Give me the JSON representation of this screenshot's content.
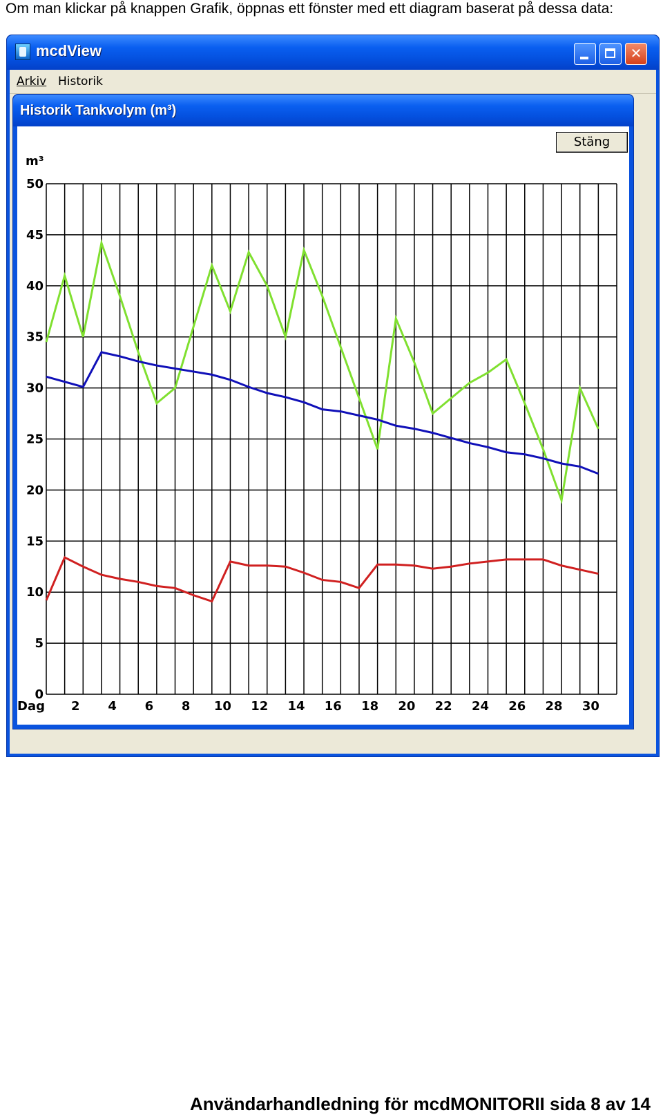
{
  "intro_text": "Om man klickar på knappen Grafik, öppnas ett fönster med ett diagram baserat på dessa data:",
  "window": {
    "title": "mcdView",
    "icon": "app-icon",
    "caption_buttons": [
      "minimize-icon",
      "maximize-icon",
      "close-icon"
    ],
    "close_glyph": "✕"
  },
  "menu": {
    "arkiv": "Arkiv",
    "historik": "Historik"
  },
  "dialog": {
    "title": "Historik Tankvolym (m³)",
    "close_button": "Stäng"
  },
  "chart_data": {
    "type": "line",
    "title": "Historik Tankvolym (m³)",
    "ylabel": "m³",
    "xlabel": "Dag",
    "ylim": [
      0,
      50
    ],
    "xlim": [
      0,
      31
    ],
    "yticks": [
      0,
      5,
      10,
      15,
      20,
      25,
      30,
      35,
      40,
      45,
      50
    ],
    "xticks": [
      2,
      4,
      6,
      8,
      10,
      12,
      14,
      16,
      18,
      20,
      22,
      24,
      26,
      28,
      30
    ],
    "grid": true,
    "x": [
      0,
      1,
      2,
      3,
      4,
      5,
      6,
      7,
      8,
      9,
      10,
      11,
      12,
      13,
      14,
      15,
      16,
      17,
      18,
      19,
      20,
      21,
      22,
      23,
      24,
      25,
      26,
      27,
      28,
      29,
      30
    ],
    "series": [
      {
        "color": "#80e030",
        "values": [
          34.5,
          41.0,
          35.0,
          44.2,
          39.0,
          33.5,
          28.5,
          30.0,
          36.0,
          42.0,
          37.5,
          43.3,
          40.0,
          35.0,
          43.5,
          39.0,
          34.0,
          29.0,
          24.0,
          36.8,
          32.5,
          27.5,
          29.0,
          30.5,
          31.5,
          32.8,
          28.5,
          24.0,
          19.0,
          30.0,
          26.0
        ]
      },
      {
        "color": "#1010b8",
        "values": [
          31.1,
          30.6,
          30.1,
          33.5,
          33.1,
          32.6,
          32.2,
          31.9,
          31.6,
          31.3,
          30.8,
          30.1,
          29.5,
          29.1,
          28.6,
          27.9,
          27.7,
          27.3,
          26.9,
          26.3,
          26.0,
          25.6,
          25.1,
          24.6,
          24.2,
          23.7,
          23.5,
          23.1,
          22.6,
          22.3,
          21.6
        ]
      },
      {
        "color": "#d02020",
        "values": [
          9.2,
          13.4,
          12.5,
          11.7,
          11.3,
          11.0,
          10.6,
          10.4,
          9.7,
          9.1,
          13.0,
          12.6,
          12.6,
          12.5,
          11.9,
          11.2,
          11.0,
          10.4,
          12.7,
          12.7,
          12.6,
          12.3,
          12.5,
          12.8,
          13.0,
          13.2,
          13.2,
          13.2,
          12.6,
          12.2,
          11.8
        ]
      }
    ]
  },
  "footer_text": "Användarhandledning för mcdMONITORII sida  8 av 14"
}
